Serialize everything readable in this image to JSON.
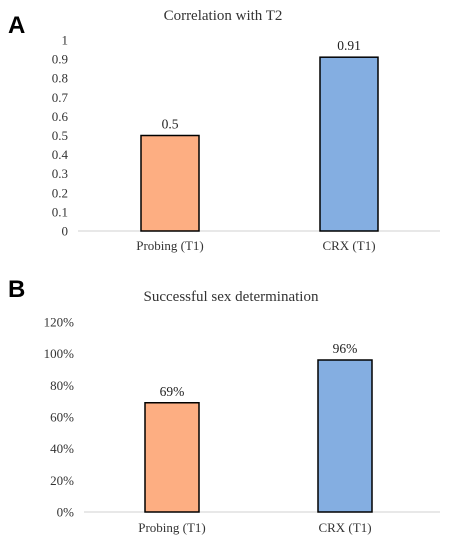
{
  "chart_data": [
    {
      "type": "bar",
      "panel_label": "A",
      "title": "Correlation with T2",
      "categories": [
        "Probing (T1)",
        "CRX (T1)"
      ],
      "values": [
        0.5,
        0.91
      ],
      "data_labels": [
        "0.5",
        "0.91"
      ],
      "colors": [
        "#FDAE82",
        "#84AEE1"
      ],
      "ylim": [
        0,
        1
      ],
      "yticks": [
        0,
        0.1,
        0.2,
        0.3,
        0.4,
        0.5,
        0.6,
        0.7,
        0.8,
        0.9,
        1
      ],
      "ytick_labels": [
        "0",
        "0.1",
        "0.2",
        "0.3",
        "0.4",
        "0.5",
        "0.6",
        "0.7",
        "0.8",
        "0.9",
        "1"
      ],
      "grid": false
    },
    {
      "type": "bar",
      "panel_label": "B",
      "title": "Successful sex determination",
      "categories": [
        "Probing (T1)",
        "CRX (T1)"
      ],
      "values": [
        69,
        96
      ],
      "data_labels": [
        "69%",
        "96%"
      ],
      "colors": [
        "#FDAE82",
        "#84AEE1"
      ],
      "ylim": [
        0,
        120
      ],
      "yticks": [
        0,
        20,
        40,
        60,
        80,
        100,
        120
      ],
      "ytick_labels": [
        "0%",
        "20%",
        "40%",
        "60%",
        "80%",
        "100%",
        "120%"
      ],
      "grid": false
    }
  ]
}
